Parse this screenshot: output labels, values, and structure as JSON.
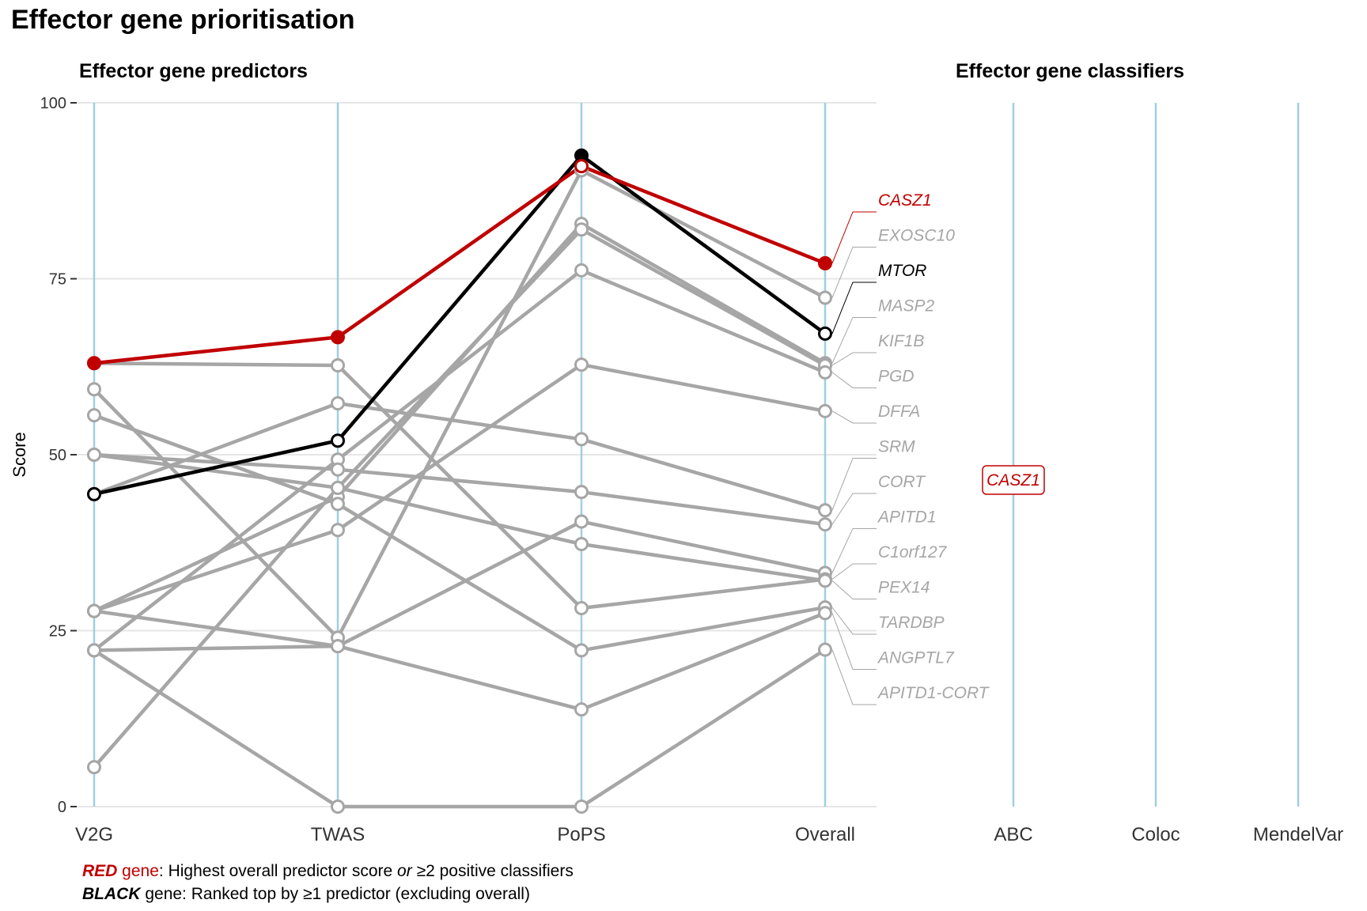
{
  "title": "Effector gene prioritisation",
  "panels": {
    "left_title": "Effector gene predictors",
    "right_title": "Effector gene classifiers"
  },
  "legend": {
    "red_word": "RED",
    "red_gene_word": " gene",
    "red_text_a": ": Highest overall predictor score ",
    "red_or": "or",
    "red_text_b": " ≥2 positive classifiers",
    "black_word": "BLACK",
    "black_text": " gene: Ranked top by ≥1 predictor (excluding overall)"
  },
  "colors": {
    "red": "#c00000",
    "black": "#000000",
    "grey": "#a6a6a6",
    "axis_line": "#9fcfe0",
    "grid": "#e6e6e6"
  },
  "chart_data": {
    "type": "line",
    "ylabel": "Score",
    "ylim": [
      0,
      100
    ],
    "y_ticks": [
      "0",
      "25",
      "50",
      "75",
      "100"
    ],
    "predictor_axes": [
      "V2G",
      "TWAS",
      "PoPS",
      "Overall"
    ],
    "classifier_axes": [
      "ABC",
      "Coloc",
      "MendelVar"
    ],
    "series": [
      {
        "name": "CASZ1",
        "color": "red",
        "values": [
          63,
          66.7,
          91,
          77.2
        ],
        "label_y": 84.5
      },
      {
        "name": "EXOSC10",
        "color": "grey",
        "values": [
          59.3,
          24,
          90.4,
          72.3
        ],
        "label_y": 79.5
      },
      {
        "name": "MTOR",
        "color": "black",
        "values": [
          44.4,
          52,
          92.5,
          67.2
        ],
        "label_y": 74.5
      },
      {
        "name": "MASP2",
        "color": "grey",
        "values": [
          27.8,
          44,
          82.8,
          63
        ],
        "label_y": 69.5
      },
      {
        "name": "KIF1B",
        "color": "grey",
        "values": [
          5.6,
          45.3,
          82,
          62.7
        ],
        "label_y": 64.5
      },
      {
        "name": "PGD",
        "color": "grey",
        "values": [
          22.2,
          49.3,
          76.2,
          61.7
        ],
        "label_y": 59.5
      },
      {
        "name": "DFFA",
        "color": "grey",
        "values": [
          27.8,
          39.3,
          62.8,
          56.2
        ],
        "label_y": 54.5
      },
      {
        "name": "SRM",
        "color": "grey",
        "values": [
          44.4,
          57.3,
          52.2,
          42.1
        ],
        "label_y": 49.5
      },
      {
        "name": "CORT",
        "color": "grey",
        "values": [
          50,
          47.9,
          44.7,
          40.1
        ],
        "label_y": 44.5
      },
      {
        "name": "APITD1",
        "color": "grey",
        "values": [
          22.2,
          22.8,
          40.5,
          33.2
        ],
        "label_y": 39.5
      },
      {
        "name": "C1orf127",
        "color": "grey",
        "values": [
          63,
          62.7,
          28.2,
          32.3
        ],
        "label_y": 34.5
      },
      {
        "name": "PEX14",
        "color": "grey",
        "values": [
          50,
          45.3,
          37.3,
          32.1
        ],
        "label_y": 29.5
      },
      {
        "name": "TARDBP",
        "color": "grey",
        "values": [
          55.6,
          43,
          22.2,
          28.3
        ],
        "label_y": 24.5
      },
      {
        "name": "ANGPTL7",
        "color": "grey",
        "values": [
          27.8,
          22.8,
          13.8,
          27.5
        ],
        "label_y": 19.5
      },
      {
        "name": "APITD1-CORT",
        "color": "grey",
        "values": [
          22.2,
          0,
          0,
          22.3
        ],
        "label_y": 14.5
      }
    ],
    "classifier_hits": [
      {
        "gene": "CASZ1",
        "axis": "ABC",
        "color": "red"
      }
    ]
  }
}
